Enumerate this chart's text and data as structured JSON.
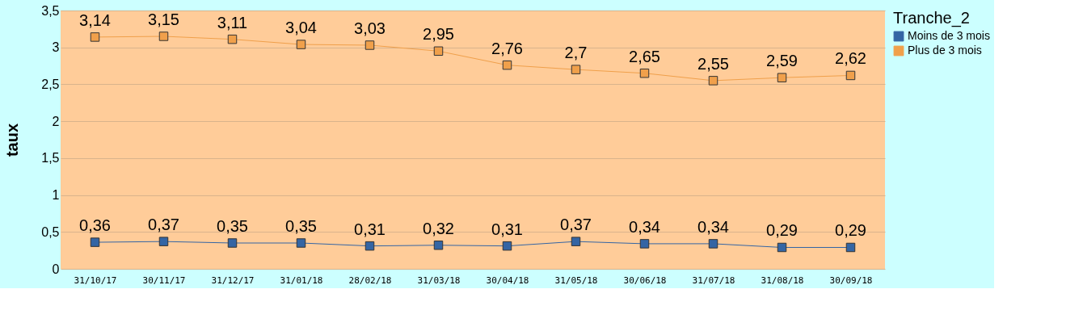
{
  "chart_data": {
    "type": "line",
    "ylabel": "taux",
    "legend_title": "Tranche_2",
    "categories": [
      "31/10/17",
      "30/11/17",
      "31/12/17",
      "31/01/18",
      "28/02/18",
      "31/03/18",
      "30/04/18",
      "31/05/18",
      "30/06/18",
      "31/07/18",
      "31/08/18",
      "30/09/18"
    ],
    "series": [
      {
        "name": "Moins de 3 mois",
        "color": "#3465a4",
        "values": [
          0.36,
          0.37,
          0.35,
          0.35,
          0.31,
          0.32,
          0.31,
          0.37,
          0.34,
          0.34,
          0.29,
          0.29
        ],
        "value_labels": [
          "0,36",
          "0,37",
          "0,35",
          "0,35",
          "0,31",
          "0,32",
          "0,31",
          "0,37",
          "0,34",
          "0,34",
          "0,29",
          "0,29"
        ]
      },
      {
        "name": "Plus de 3 mois",
        "color": "#f0a04b",
        "values": [
          3.14,
          3.15,
          3.11,
          3.04,
          3.03,
          2.95,
          2.76,
          2.7,
          2.65,
          2.55,
          2.59,
          2.62
        ],
        "value_labels": [
          "3,14",
          "3,15",
          "3,11",
          "3,04",
          "3,03",
          "2,95",
          "2,76",
          "2,7",
          "2,65",
          "2,55",
          "2,59",
          "2,62"
        ]
      }
    ],
    "ylim": [
      0,
      3.5
    ],
    "yticks": [
      0,
      {
        "value": 0.5,
        "label": "0,5"
      },
      1,
      {
        "value": 1.5,
        "label": "1,5"
      },
      2,
      {
        "value": 2.5,
        "label": "2,5"
      },
      3,
      {
        "value": 3.5,
        "label": "3,5"
      }
    ],
    "grid": "y",
    "legend": "right",
    "marker": "square",
    "line_style": "solid"
  }
}
